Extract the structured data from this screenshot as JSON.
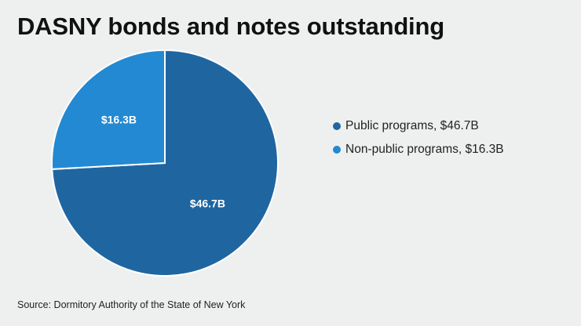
{
  "title": "DASNY bonds and notes outstanding",
  "source": "Source: Dormitory Authority of the State of New York",
  "colors": {
    "public": "#1f66a1",
    "nonpublic": "#2389d3",
    "background": "#eef0f0"
  },
  "chart_data": {
    "type": "pie",
    "title": "DASNY bonds and notes outstanding",
    "unit": "billion USD",
    "slices": [
      {
        "name": "Public programs",
        "value": 46.7,
        "label": "$46.7B",
        "legend": "Public programs, $46.7B",
        "color": "#1f66a1"
      },
      {
        "name": "Non-public programs",
        "value": 16.3,
        "label": "$16.3B",
        "legend": "Non-public programs, $16.3B",
        "color": "#2389d3"
      }
    ],
    "legend_position": "right"
  }
}
